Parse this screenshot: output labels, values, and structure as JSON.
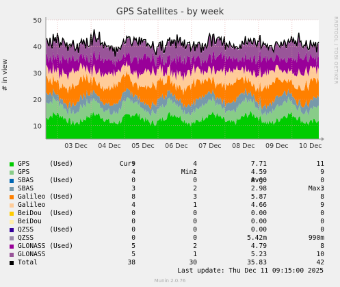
{
  "side_text": "RRDTOOL / TOBI OETIKER",
  "footer": {
    "last_update": "Last update: Thu Dec 11 09:15:00 2025",
    "version": "Munin 2.0.76"
  },
  "legend_headers": {
    "cur": "Cur:",
    "min": "Min:",
    "avg": "Avg:",
    "max": "Max:"
  },
  "chart_data": {
    "type": "area",
    "title": "GPS Satellites - by week",
    "ylabel": "# in view",
    "ylim": [
      5,
      50
    ],
    "yticks": [
      "10",
      "20",
      "30",
      "40",
      "50"
    ],
    "categories": [
      "03 Dec",
      "04 Dec",
      "05 Dec",
      "06 Dec",
      "07 Dec",
      "08 Dec",
      "09 Dec",
      "10 Dec"
    ],
    "grid": true,
    "series": [
      {
        "name": "GPS     (Used)",
        "color": "#00cc00",
        "cur": "9",
        "min": "4",
        "avg": "7.71",
        "max": "11"
      },
      {
        "name": "GPS",
        "color": "#88cc88",
        "cur": "4",
        "min": "2",
        "avg": "4.59",
        "max": "9"
      },
      {
        "name": "SBAS    (Used)",
        "color": "#0066b3",
        "cur": "0",
        "min": "0",
        "avg": "0.00",
        "max": "0"
      },
      {
        "name": "SBAS",
        "color": "#7799aa",
        "cur": "3",
        "min": "2",
        "avg": "2.98",
        "max": "3"
      },
      {
        "name": "Galileo (Used)",
        "color": "#ff8000",
        "cur": "8",
        "min": "3",
        "avg": "5.87",
        "max": "8"
      },
      {
        "name": "Galileo",
        "color": "#ffcc99",
        "cur": "4",
        "min": "1",
        "avg": "4.66",
        "max": "9"
      },
      {
        "name": "BeiDou  (Used)",
        "color": "#ffcc00",
        "cur": "0",
        "min": "0",
        "avg": "0.00",
        "max": "0"
      },
      {
        "name": "BeiDou",
        "color": "#ffeeaa",
        "cur": "0",
        "min": "0",
        "avg": "0.00",
        "max": "0"
      },
      {
        "name": "QZSS    (Used)",
        "color": "#330099",
        "cur": "0",
        "min": "0",
        "avg": "0.00",
        "max": "0"
      },
      {
        "name": "QZSS",
        "color": "#9988aa",
        "cur": "0",
        "min": "0",
        "avg": "5.42m",
        "max": "990m"
      },
      {
        "name": "GLONASS (Used)",
        "color": "#990099",
        "cur": "5",
        "min": "2",
        "avg": "4.79",
        "max": "8"
      },
      {
        "name": "GLONASS",
        "color": "#995599",
        "cur": "5",
        "min": "1",
        "avg": "5.23",
        "max": "10"
      },
      {
        "name": "Total",
        "color": "#000000",
        "cur": "38",
        "min": "30",
        "avg": "35.83",
        "max": "42"
      }
    ]
  }
}
